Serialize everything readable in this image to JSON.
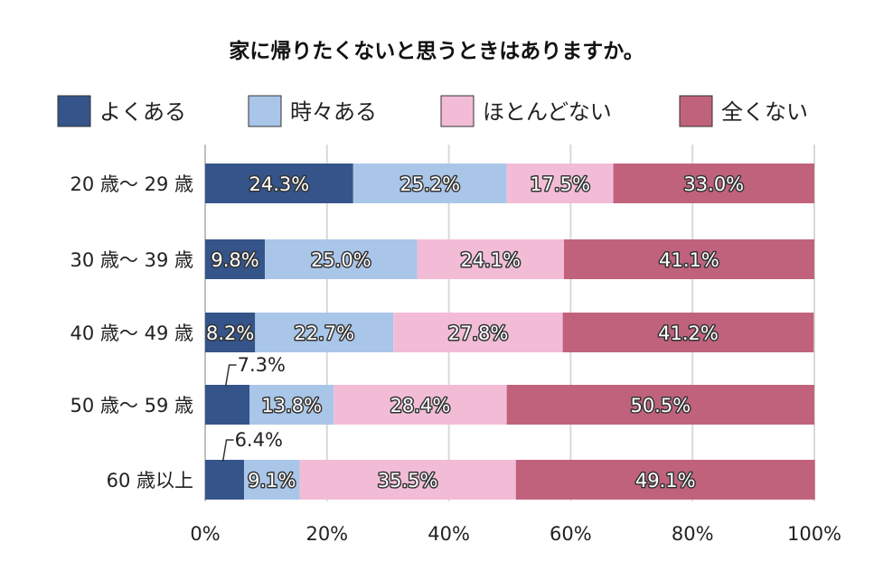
{
  "chart_data": {
    "type": "bar",
    "orientation": "horizontal",
    "stacked": true,
    "title": "家に帰りたくないと思うときはありますか。",
    "categories": [
      "20 歳～ 29 歳",
      "30 歳～ 39 歳",
      "40 歳～ 49 歳",
      "50 歳～ 59 歳",
      "60 歳以上"
    ],
    "series": [
      {
        "name": "よくある",
        "color": "#34548a",
        "values": [
          24.3,
          9.8,
          8.2,
          7.3,
          6.4
        ]
      },
      {
        "name": "時々ある",
        "color": "#a9c6e9",
        "values": [
          25.2,
          25.0,
          22.7,
          13.8,
          9.1
        ]
      },
      {
        "name": "ほとんどない",
        "color": "#f2bcd6",
        "values": [
          17.5,
          24.1,
          27.8,
          28.4,
          35.5
        ]
      },
      {
        "name": "全くない",
        "color": "#c0627c",
        "values": [
          33.0,
          41.1,
          41.2,
          50.5,
          49.1
        ]
      }
    ],
    "data_labels": [
      [
        "24.3%",
        "25.2%",
        "17.5%",
        "33.0%"
      ],
      [
        "9.8%",
        "25.0%",
        "24.1%",
        "41.1%"
      ],
      [
        "8.2%",
        "22.7%",
        "27.8%",
        "41.2%"
      ],
      [
        "7.3%",
        "13.8%",
        "28.4%",
        "50.5%"
      ],
      [
        "6.4%",
        "9.1%",
        "35.5%",
        "49.1%"
      ]
    ],
    "outside_labels": [
      [
        3,
        0
      ],
      [
        4,
        0
      ]
    ],
    "x_ticks": [
      "0%",
      "20%",
      "40%",
      "60%",
      "80%",
      "100%"
    ],
    "xlim": [
      0,
      100
    ],
    "grid": true,
    "legend_position": "top"
  }
}
